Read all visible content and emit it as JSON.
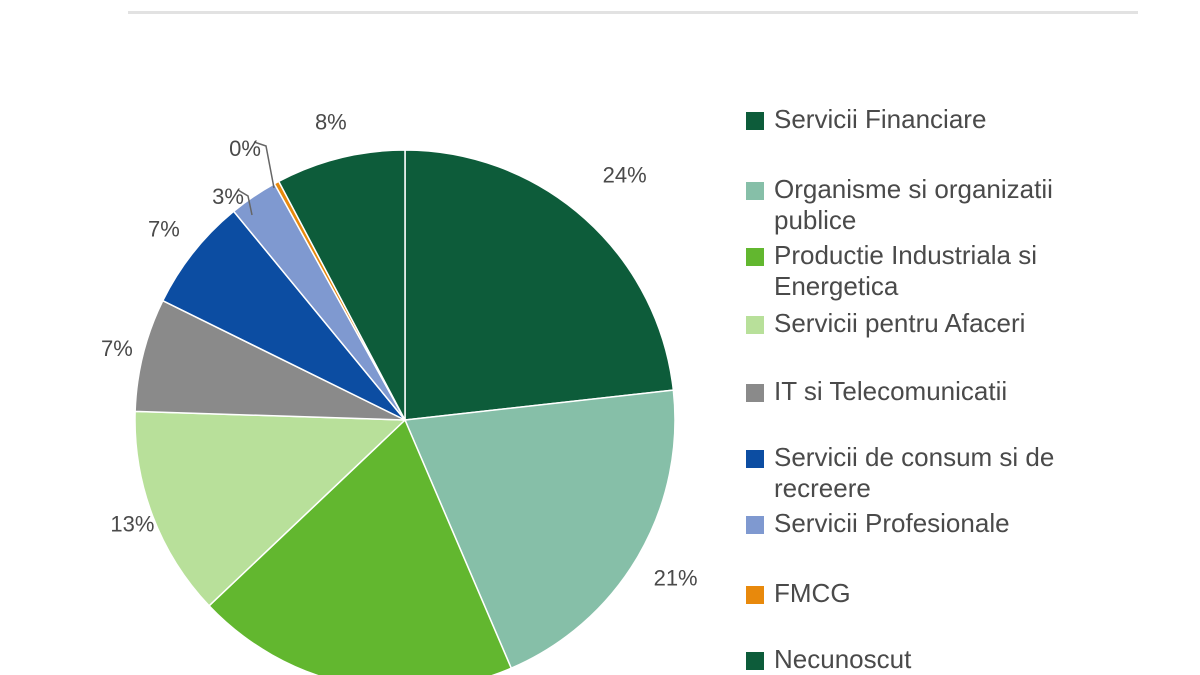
{
  "chart_data": {
    "type": "pie",
    "slices": [
      {
        "name": "Servicii Financiare",
        "value": 24,
        "label": "24%",
        "color": "#0d5c3a"
      },
      {
        "name": "Organisme si organizatii publice",
        "value": 21,
        "label": "21%",
        "color": "#86bfa8"
      },
      {
        "name": "Productie Industriala si Energetica",
        "value": 20,
        "label": "",
        "color": "#62b72f"
      },
      {
        "name": "Servicii pentru Afaceri",
        "value": 13,
        "label": "13%",
        "color": "#b8e09a"
      },
      {
        "name": "IT si Telecomunicatii",
        "value": 7,
        "label": "7%",
        "color": "#8a8a8a"
      },
      {
        "name": "Servicii de consum si de recreere",
        "value": 7,
        "label": "7%",
        "color": "#0c4da2"
      },
      {
        "name": "Servicii Profesionale",
        "value": 3,
        "label": "3%",
        "color": "#7f99d0"
      },
      {
        "name": "FMCG",
        "value": 0.3,
        "label": "0%",
        "color": "#e8890c"
      },
      {
        "name": "Necunoscut",
        "value": 8,
        "label": "8%",
        "color": "#0d5c3a"
      }
    ],
    "legend_position": "right"
  },
  "legend": [
    {
      "label": "Servicii Financiare",
      "color": "#0d5c3a"
    },
    {
      "label": "Organisme si organizatii publice",
      "color": "#86bfa8"
    },
    {
      "label": "Productie Industriala si Energetica",
      "color": "#62b72f"
    },
    {
      "label": "Servicii pentru Afaceri",
      "color": "#b8e09a"
    },
    {
      "label": "IT si Telecomunicatii",
      "color": "#8a8a8a"
    },
    {
      "label": "Servicii de consum si de recreere",
      "color": "#0c4da2"
    },
    {
      "label": "Servicii Profesionale",
      "color": "#7f99d0"
    },
    {
      "label": "FMCG",
      "color": "#e8890c"
    },
    {
      "label": "Necunoscut",
      "color": "#0d5c3a"
    }
  ]
}
